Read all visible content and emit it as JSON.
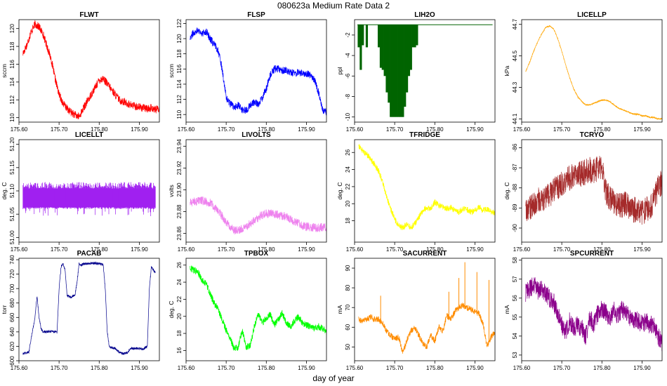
{
  "figure": {
    "title": "080623a   Medium Rate Data 2",
    "xlabel": "day of year"
  },
  "chart_data": [
    {
      "type": "line",
      "title": "FLWT",
      "ylabel": "sccm",
      "color": "#ff0000",
      "xlim": [
        175.6,
        175.95
      ],
      "ylim": [
        109.5,
        121
      ],
      "xticks": [
        "175.60",
        "175.70",
        "175.80",
        "175.90"
      ],
      "yticks": [
        "110",
        "112",
        "114",
        "116",
        "118",
        "120"
      ],
      "x": [
        175.61,
        175.62,
        175.63,
        175.64,
        175.65,
        175.66,
        175.67,
        175.68,
        175.69,
        175.7,
        175.71,
        175.72,
        175.73,
        175.74,
        175.75,
        175.76,
        175.77,
        175.78,
        175.79,
        175.8,
        175.81,
        175.82,
        175.83,
        175.84,
        175.85,
        175.86,
        175.87,
        175.88,
        175.89,
        175.9,
        175.91,
        175.92,
        175.93,
        175.94,
        175.95
      ],
      "y": [
        117.2,
        118.2,
        119.6,
        120.5,
        120.2,
        119.4,
        118.0,
        116.6,
        114.4,
        112.6,
        111.6,
        111.0,
        110.6,
        110.3,
        110.1,
        111.0,
        111.8,
        112.6,
        113.4,
        114.2,
        114.4,
        113.8,
        113.2,
        112.6,
        112.0,
        111.8,
        111.6,
        111.4,
        111.3,
        111.2,
        111.1,
        111.0,
        111.1,
        110.9,
        111.0
      ],
      "noise": 0.45
    },
    {
      "type": "line",
      "title": "FLSP",
      "ylabel": "sccm",
      "color": "#0000ff",
      "xlim": [
        175.6,
        175.95
      ],
      "ylim": [
        109,
        122.5
      ],
      "xticks": [
        "175.60",
        "175.70",
        "175.80",
        "175.90"
      ],
      "yticks": [
        "110",
        "112",
        "114",
        "116",
        "118",
        "120",
        "122"
      ],
      "x": [
        175.61,
        175.62,
        175.63,
        175.64,
        175.65,
        175.66,
        175.67,
        175.68,
        175.69,
        175.7,
        175.71,
        175.72,
        175.73,
        175.74,
        175.75,
        175.76,
        175.77,
        175.78,
        175.79,
        175.8,
        175.81,
        175.82,
        175.83,
        175.84,
        175.85,
        175.86,
        175.87,
        175.88,
        175.89,
        175.9,
        175.91,
        175.92,
        175.93,
        175.94,
        175.95
      ],
      "y": [
        120.2,
        120.8,
        121.2,
        120.6,
        121.0,
        120.0,
        119.2,
        118.5,
        116.0,
        112.2,
        111.4,
        111.0,
        111.2,
        110.6,
        110.6,
        111.2,
        111.6,
        111.4,
        112.2,
        113.4,
        115.2,
        116.0,
        116.0,
        115.8,
        115.8,
        115.6,
        115.4,
        115.6,
        115.4,
        115.4,
        115.2,
        114.6,
        113.0,
        110.6,
        110.3
      ],
      "noise": 0.5
    },
    {
      "type": "bar",
      "title": "LIH2O",
      "ylabel": "ppl",
      "color": "#006400",
      "xlim": [
        175.6,
        175.95
      ],
      "ylim": [
        -10.5,
        -0.5
      ],
      "xticks": [
        "175.60",
        "175.70",
        "175.80",
        "175.90"
      ],
      "yticks": [
        "-2",
        "-4",
        "-6",
        "-8",
        "-10"
      ],
      "baseline": -1,
      "x": [
        175.61,
        175.615,
        175.62,
        175.63,
        175.66,
        175.665,
        175.67,
        175.675,
        175.68,
        175.685,
        175.69,
        175.695,
        175.7,
        175.705,
        175.71,
        175.715,
        175.72,
        175.725,
        175.73,
        175.735,
        175.74,
        175.745,
        175.75,
        175.755
      ],
      "y": [
        -3.2,
        -5.4,
        -3.0,
        -3.2,
        -3.2,
        -5.2,
        -5.4,
        -6.0,
        -7.6,
        -8.6,
        -10.0,
        -10.0,
        -10.0,
        -10.0,
        -10.0,
        -10.0,
        -10.0,
        -9.0,
        -7.6,
        -6.0,
        -5.4,
        -3.2,
        -3.2,
        -3.0
      ],
      "noise": 0
    },
    {
      "type": "line",
      "title": "LICELLP",
      "ylabel": "kPa",
      "color": "#ffa500",
      "xlim": [
        175.6,
        175.95
      ],
      "ylim": [
        44.08,
        44.73
      ],
      "xticks": [
        "175.60",
        "175.70",
        "175.80",
        "175.90"
      ],
      "yticks": [
        "44.1",
        "44.3",
        "44.5",
        "44.7"
      ],
      "x": [
        175.61,
        175.62,
        175.63,
        175.64,
        175.65,
        175.66,
        175.67,
        175.68,
        175.69,
        175.7,
        175.71,
        175.72,
        175.73,
        175.74,
        175.75,
        175.76,
        175.77,
        175.78,
        175.79,
        175.8,
        175.81,
        175.82,
        175.83,
        175.84,
        175.85,
        175.86,
        175.87,
        175.88,
        175.89,
        175.9,
        175.91,
        175.92,
        175.93,
        175.94,
        175.95
      ],
      "y": [
        44.4,
        44.46,
        44.53,
        44.59,
        44.64,
        44.68,
        44.69,
        44.67,
        44.61,
        44.53,
        44.44,
        44.36,
        44.29,
        44.24,
        44.21,
        44.19,
        44.19,
        44.2,
        44.21,
        44.22,
        44.22,
        44.21,
        44.19,
        44.17,
        44.16,
        44.15,
        44.14,
        44.13,
        44.13,
        44.12,
        44.12,
        44.11,
        44.11,
        44.1,
        44.1
      ],
      "noise": 0.004
    },
    {
      "type": "line",
      "title": "LICELLT",
      "ylabel": "deg. C",
      "color": "#a020f0",
      "xlim": [
        175.6,
        175.95
      ],
      "ylim": [
        50.99,
        51.21
      ],
      "xticks": [
        "175.60",
        "175.70",
        "175.80",
        "175.90"
      ],
      "yticks": [
        "51.00",
        "51.05",
        "51.10",
        "51.15",
        "51.20"
      ],
      "x": [
        175.61,
        175.7,
        175.8,
        175.94
      ],
      "y": [
        51.085,
        51.085,
        51.085,
        51.085
      ],
      "band": [
        51.065,
        51.105
      ],
      "noise": 0.02
    },
    {
      "type": "line",
      "title": "LIVOLTS",
      "ylabel": "volts",
      "color": "#ee82ee",
      "xlim": [
        175.6,
        175.95
      ],
      "ylim": [
        23.852,
        23.946
      ],
      "xticks": [
        "175.60",
        "175.70",
        "175.80",
        "175.90"
      ],
      "yticks": [
        "23.86",
        "23.88",
        "23.90",
        "23.92",
        "23.94"
      ],
      "x": [
        175.61,
        175.62,
        175.63,
        175.64,
        175.65,
        175.66,
        175.67,
        175.68,
        175.69,
        175.7,
        175.71,
        175.72,
        175.73,
        175.74,
        175.75,
        175.76,
        175.77,
        175.78,
        175.79,
        175.8,
        175.81,
        175.82,
        175.83,
        175.84,
        175.85,
        175.86,
        175.87,
        175.88,
        175.89,
        175.9,
        175.91,
        175.92,
        175.93,
        175.94,
        175.95
      ],
      "y": [
        23.888,
        23.889,
        23.89,
        23.89,
        23.889,
        23.888,
        23.884,
        23.88,
        23.876,
        23.87,
        23.866,
        23.863,
        23.863,
        23.864,
        23.866,
        23.869,
        23.872,
        23.875,
        23.877,
        23.878,
        23.878,
        23.878,
        23.877,
        23.876,
        23.875,
        23.873,
        23.871,
        23.869,
        23.867,
        23.866,
        23.866,
        23.865,
        23.865,
        23.866,
        23.865
      ],
      "noise": 0.004
    },
    {
      "type": "line",
      "title": "TFRIDGE",
      "ylabel": "deg. C",
      "color": "#ffff00",
      "xlim": [
        175.6,
        175.95
      ],
      "ylim": [
        15.5,
        27.5
      ],
      "xticks": [
        "175.60",
        "175.70",
        "175.80",
        "175.90"
      ],
      "yticks": [
        "18",
        "20",
        "22",
        "24",
        "26"
      ],
      "x": [
        175.61,
        175.62,
        175.63,
        175.64,
        175.65,
        175.66,
        175.67,
        175.68,
        175.69,
        175.7,
        175.71,
        175.72,
        175.73,
        175.74,
        175.75,
        175.76,
        175.77,
        175.78,
        175.79,
        175.8,
        175.81,
        175.82,
        175.83,
        175.84,
        175.85,
        175.86,
        175.87,
        175.88,
        175.89,
        175.9,
        175.91,
        175.92,
        175.93,
        175.94,
        175.95
      ],
      "y": [
        26.8,
        26.2,
        25.8,
        25.2,
        24.6,
        23.8,
        22.5,
        20.8,
        19.4,
        18.2,
        17.4,
        17.2,
        17.6,
        17.2,
        17.6,
        18.4,
        19.2,
        19.5,
        19.4,
        20.2,
        19.8,
        19.6,
        19.4,
        19.6,
        19.2,
        19.0,
        19.4,
        19.3,
        19.0,
        19.2,
        19.6,
        19.2,
        19.4,
        19.0,
        19.0
      ],
      "noise": 0.35
    },
    {
      "type": "line",
      "title": "TCRYO",
      "ylabel": "deg. C",
      "color": "#a52a2a",
      "xlim": [
        175.6,
        175.95
      ],
      "ylim": [
        -90.7,
        -85.6
      ],
      "xticks": [
        "175.60",
        "175.70",
        "175.80",
        "175.90"
      ],
      "yticks": [
        "-86",
        "-87",
        "-88",
        "-89",
        "-90"
      ],
      "x": [
        175.61,
        175.62,
        175.63,
        175.64,
        175.65,
        175.66,
        175.67,
        175.68,
        175.69,
        175.7,
        175.71,
        175.72,
        175.73,
        175.74,
        175.75,
        175.76,
        175.77,
        175.78,
        175.79,
        175.8,
        175.81,
        175.82,
        175.83,
        175.84,
        175.85,
        175.86,
        175.87,
        175.88,
        175.89,
        175.9,
        175.91,
        175.92,
        175.93,
        175.94,
        175.95
      ],
      "y": [
        -89.2,
        -89.0,
        -88.9,
        -88.6,
        -88.7,
        -88.5,
        -88.4,
        -88.1,
        -88.0,
        -87.8,
        -87.6,
        -87.5,
        -87.4,
        -87.3,
        -87.3,
        -87.2,
        -87.1,
        -87.2,
        -87.0,
        -86.9,
        -88.2,
        -88.5,
        -88.7,
        -88.8,
        -88.9,
        -88.8,
        -89.0,
        -89.1,
        -89.0,
        -89.2,
        -89.1,
        -89.0,
        -88.6,
        -88.0,
        -87.7
      ],
      "noise": 0.65
    },
    {
      "type": "line",
      "title": "PACAB",
      "ylabel": "torr",
      "color": "#00008b",
      "xlim": [
        175.6,
        175.95
      ],
      "ylim": [
        600,
        742
      ],
      "xticks": [
        "175.60",
        "175.70",
        "175.80",
        "175.90"
      ],
      "yticks": [
        "600",
        "620",
        "640",
        "660",
        "680",
        "700",
        "720",
        "740"
      ],
      "x": [
        175.61,
        175.625,
        175.63,
        175.64,
        175.645,
        175.65,
        175.655,
        175.66,
        175.68,
        175.695,
        175.7,
        175.705,
        175.71,
        175.715,
        175.72,
        175.73,
        175.74,
        175.745,
        175.75,
        175.755,
        175.76,
        175.78,
        175.8,
        175.81,
        175.815,
        175.82,
        175.825,
        175.83,
        175.84,
        175.85,
        175.86,
        175.87,
        175.875,
        175.88,
        175.9,
        175.91,
        175.92,
        175.925,
        175.93,
        175.935,
        175.94
      ],
      "y": [
        610,
        612,
        630,
        660,
        690,
        660,
        645,
        640,
        641,
        640,
        700,
        730,
        735,
        725,
        690,
        688,
        692,
        710,
        735,
        732,
        734,
        735,
        735,
        733,
        700,
        640,
        620,
        618,
        617,
        612,
        610,
        611,
        615,
        617,
        617,
        616,
        620,
        700,
        730,
        726,
        722
      ],
      "noise": 1.8
    },
    {
      "type": "line",
      "title": "TPBOX",
      "ylabel": "deg. C",
      "color": "#00ff00",
      "xlim": [
        175.6,
        175.95
      ],
      "ylim": [
        14.8,
        26.8
      ],
      "xticks": [
        "175.60",
        "175.70",
        "175.80",
        "175.90"
      ],
      "yticks": [
        "16",
        "18",
        "20",
        "22",
        "24",
        "26"
      ],
      "x": [
        175.61,
        175.62,
        175.63,
        175.64,
        175.65,
        175.66,
        175.67,
        175.68,
        175.69,
        175.7,
        175.71,
        175.72,
        175.73,
        175.74,
        175.75,
        175.76,
        175.77,
        175.78,
        175.79,
        175.8,
        175.81,
        175.82,
        175.83,
        175.84,
        175.85,
        175.86,
        175.87,
        175.88,
        175.89,
        175.9,
        175.91,
        175.92,
        175.93,
        175.94,
        175.95
      ],
      "y": [
        25.6,
        25.4,
        25.2,
        24.2,
        23.8,
        22.6,
        21.6,
        20.8,
        19.6,
        18.4,
        17.4,
        16.2,
        16.4,
        18.4,
        16.4,
        16.6,
        18.8,
        20.2,
        19.2,
        19.8,
        20.2,
        19.0,
        19.6,
        20.4,
        19.2,
        18.8,
        19.4,
        20.0,
        19.2,
        19.0,
        18.8,
        18.6,
        18.8,
        18.6,
        18.2
      ],
      "noise": 0.4
    },
    {
      "type": "line",
      "title": "SACURRENT",
      "ylabel": "mA",
      "color": "#ff8c00",
      "xlim": [
        175.6,
        175.95
      ],
      "ylim": [
        43,
        95
      ],
      "xticks": [
        "175.60",
        "175.70",
        "175.80",
        "175.90"
      ],
      "yticks": [
        "50",
        "60",
        "70",
        "80",
        "90"
      ],
      "x": [
        175.61,
        175.62,
        175.63,
        175.64,
        175.65,
        175.66,
        175.67,
        175.68,
        175.69,
        175.7,
        175.71,
        175.72,
        175.73,
        175.74,
        175.75,
        175.76,
        175.77,
        175.78,
        175.79,
        175.8,
        175.81,
        175.82,
        175.83,
        175.84,
        175.85,
        175.86,
        175.87,
        175.88,
        175.89,
        175.9,
        175.91,
        175.92,
        175.93,
        175.94,
        175.95
      ],
      "y": [
        64,
        63,
        64,
        65,
        64,
        64,
        62,
        58,
        56,
        54,
        55,
        47,
        53,
        58,
        60,
        56,
        52,
        50,
        56,
        53,
        60,
        58,
        66,
        64,
        68,
        70,
        71,
        70,
        69,
        68,
        67,
        62,
        50,
        55,
        58
      ],
      "spikes": [
        [
          175.665,
          76
        ],
        [
          175.835,
          78
        ],
        [
          175.86,
          85
        ],
        [
          175.875,
          93
        ],
        [
          175.905,
          88
        ],
        [
          175.935,
          84
        ]
      ],
      "noise": 1.6
    },
    {
      "type": "line",
      "title": "SPCURRENT",
      "ylabel": "mA",
      "color": "#8b008b",
      "xlim": [
        175.6,
        175.95
      ],
      "ylim": [
        52.7,
        58.1
      ],
      "xticks": [
        "175.60",
        "175.70",
        "175.80",
        "175.90"
      ],
      "yticks": [
        "53",
        "54",
        "55",
        "56",
        "57",
        "58"
      ],
      "x": [
        175.61,
        175.62,
        175.63,
        175.64,
        175.65,
        175.66,
        175.67,
        175.68,
        175.69,
        175.7,
        175.71,
        175.72,
        175.73,
        175.74,
        175.75,
        175.76,
        175.77,
        175.78,
        175.79,
        175.8,
        175.81,
        175.82,
        175.83,
        175.84,
        175.85,
        175.86,
        175.87,
        175.88,
        175.89,
        175.9,
        175.91,
        175.92,
        175.93,
        175.94,
        175.95
      ],
      "y": [
        56.3,
        56.5,
        56.7,
        56.4,
        56.5,
        56.2,
        56.0,
        55.8,
        55.2,
        54.6,
        54.2,
        54.8,
        54.4,
        54.6,
        54.4,
        54.0,
        55.0,
        54.6,
        55.2,
        55.4,
        55.2,
        55.0,
        55.4,
        55.0,
        55.4,
        55.2,
        55.0,
        54.8,
        54.8,
        54.6,
        54.8,
        54.6,
        54.6,
        54.0,
        53.6
      ],
      "noise": 0.5
    }
  ]
}
